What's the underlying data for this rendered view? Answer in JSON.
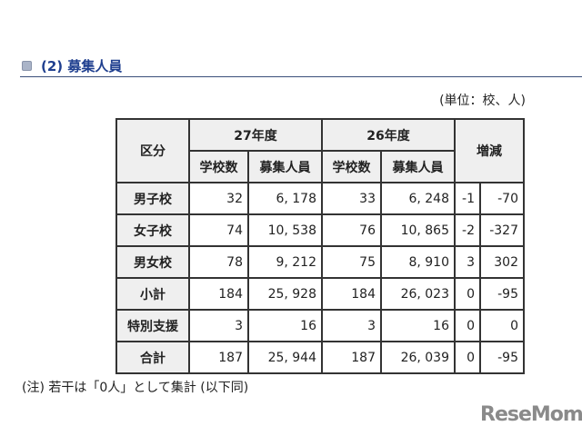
{
  "heading": "(2) 募集人員",
  "unit": "(単位：校、人)",
  "table": {
    "header": {
      "category": "区分",
      "y27": "27年度",
      "y26": "26年度",
      "change": "増減",
      "schools": "学校数",
      "recruits": "募集人員"
    },
    "rows": [
      {
        "label": "男子校",
        "s27": "32",
        "r27": "6, 178",
        "s26": "33",
        "r26": "6, 248",
        "ds": "-1",
        "dr": "-70"
      },
      {
        "label": "女子校",
        "s27": "74",
        "r27": "10, 538",
        "s26": "76",
        "r26": "10, 865",
        "ds": "-2",
        "dr": "-327"
      },
      {
        "label": "男女校",
        "s27": "78",
        "r27": "9, 212",
        "s26": "75",
        "r26": "8, 910",
        "ds": "3",
        "dr": "302"
      },
      {
        "label": "小計",
        "s27": "184",
        "r27": "25, 928",
        "s26": "184",
        "r26": "26, 023",
        "ds": "0",
        "dr": "-95"
      },
      {
        "label": "特別支援",
        "s27": "3",
        "r27": "16",
        "s26": "3",
        "r26": "16",
        "ds": "0",
        "dr": "0"
      },
      {
        "label": "合計",
        "s27": "187",
        "r27": "25, 944",
        "s26": "187",
        "r26": "26, 039",
        "ds": "0",
        "dr": "-95"
      }
    ]
  },
  "note": "(注) 若干は「0人」として集計 (以下同)",
  "logo": "ReseMom"
}
